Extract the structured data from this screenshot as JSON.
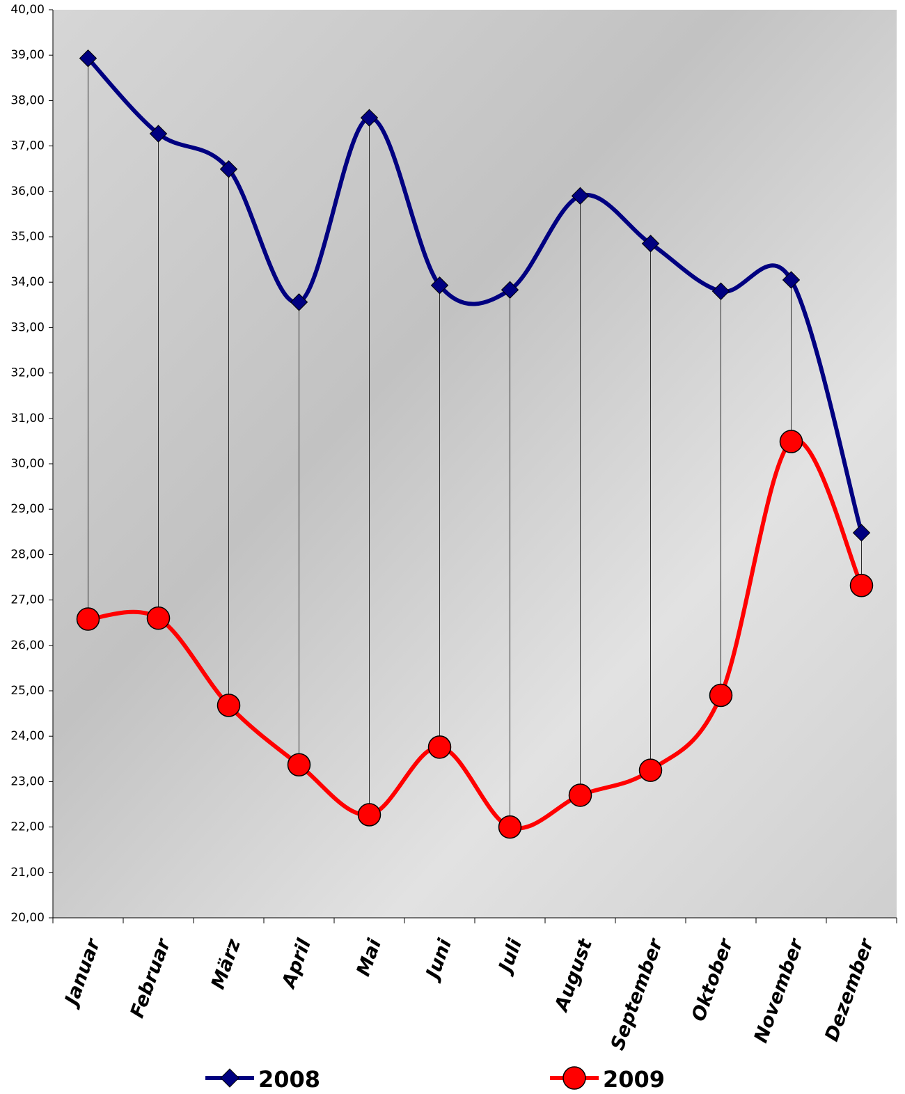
{
  "chart_data": {
    "type": "line",
    "smooth": true,
    "drop_lines": true,
    "categories": [
      "Januar",
      "Februar",
      "März",
      "April",
      "Mai",
      "Juni",
      "Juli",
      "August",
      "September",
      "Oktober",
      "November",
      "Dezember"
    ],
    "series": [
      {
        "name": "2008",
        "color": "#000080",
        "marker": "diamond",
        "values": [
          38.93,
          37.27,
          36.49,
          33.56,
          37.62,
          33.93,
          33.83,
          35.9,
          34.85,
          33.8,
          34.05,
          28.48
        ]
      },
      {
        "name": "2009",
        "color": "#ff0000",
        "marker": "circle",
        "values": [
          26.58,
          26.6,
          24.68,
          23.37,
          22.27,
          23.76,
          22.0,
          22.7,
          23.25,
          24.9,
          30.49,
          27.32
        ]
      }
    ],
    "ylim": [
      20,
      40
    ],
    "yticks": [
      {
        "value": 20,
        "label": "20,00"
      },
      {
        "value": 21,
        "label": "21,00"
      },
      {
        "value": 22,
        "label": "22,00"
      },
      {
        "value": 23,
        "label": "23,00"
      },
      {
        "value": 24,
        "label": "24,00"
      },
      {
        "value": 25,
        "label": "25,00"
      },
      {
        "value": 26,
        "label": "26,00"
      },
      {
        "value": 27,
        "label": "27,00"
      },
      {
        "value": 28,
        "label": "28,00"
      },
      {
        "value": 29,
        "label": "29,00"
      },
      {
        "value": 30,
        "label": "30,00"
      },
      {
        "value": 31,
        "label": "31,00"
      },
      {
        "value": 32,
        "label": "32,00"
      },
      {
        "value": 33,
        "label": "33,00"
      },
      {
        "value": 34,
        "label": "34,00"
      },
      {
        "value": 35,
        "label": "35,00"
      },
      {
        "value": 36,
        "label": "36,00"
      },
      {
        "value": 37,
        "label": "37,00"
      },
      {
        "value": 38,
        "label": "38,00"
      },
      {
        "value": 39,
        "label": "39,00"
      },
      {
        "value": 40,
        "label": "40,00"
      }
    ],
    "grid": false,
    "legend": "bottom"
  }
}
